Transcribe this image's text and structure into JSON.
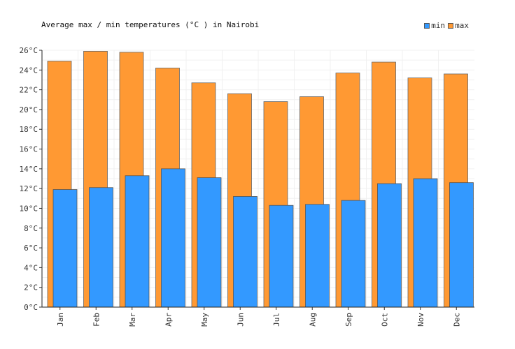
{
  "chart_data": {
    "type": "bar",
    "title": "Average max / min temperatures (°C ) in Nairobi",
    "categories": [
      "Jan",
      "Feb",
      "Mar",
      "Apr",
      "May",
      "Jun",
      "Jul",
      "Aug",
      "Sep",
      "Oct",
      "Nov",
      "Dec"
    ],
    "series": [
      {
        "name": "max",
        "color": "#ff9933",
        "values": [
          24.9,
          25.9,
          25.8,
          24.2,
          22.7,
          21.6,
          20.8,
          21.3,
          23.7,
          24.8,
          23.2,
          23.6
        ]
      },
      {
        "name": "min",
        "color": "#3399ff",
        "values": [
          11.9,
          12.1,
          13.3,
          14.0,
          13.1,
          11.2,
          10.3,
          10.4,
          10.8,
          12.5,
          13.0,
          12.6
        ]
      }
    ],
    "ylim": [
      0,
      26
    ],
    "yticks": [
      "0°C",
      "2°C",
      "4°C",
      "6°C",
      "8°C",
      "10°C",
      "12°C",
      "14°C",
      "16°C",
      "18°C",
      "20°C",
      "22°C",
      "24°C",
      "26°C"
    ],
    "grid": true,
    "legend_position": "top-right",
    "xlabel": "",
    "ylabel": ""
  },
  "legend": [
    {
      "label": "min",
      "color": "#3399ff"
    },
    {
      "label": "max",
      "color": "#ff9933"
    }
  ]
}
